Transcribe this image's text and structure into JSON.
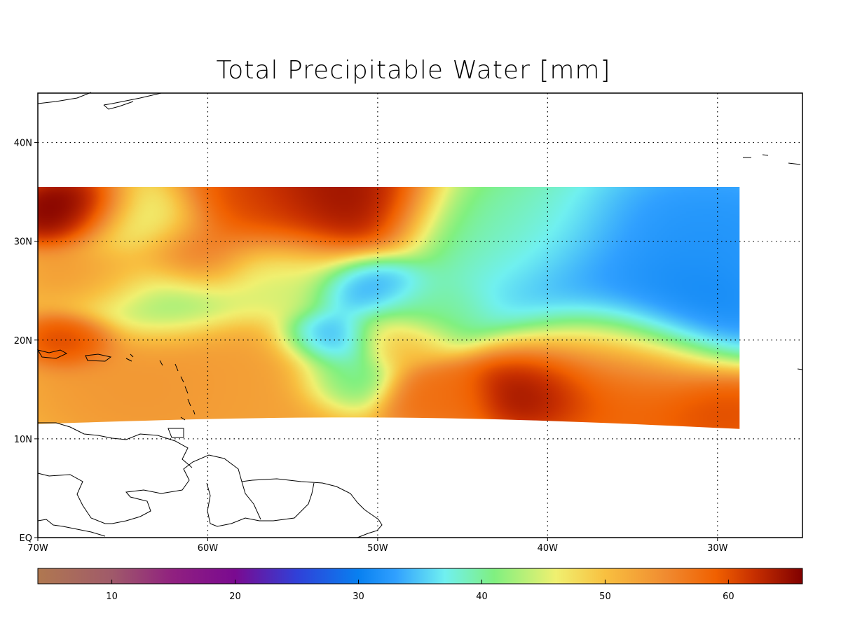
{
  "title": "Total Precipitable Water [mm]",
  "map": {
    "lon_range": [
      -70,
      -25
    ],
    "lat_range": [
      0,
      45
    ],
    "lon_ticks": [
      {
        "value": -70,
        "label": "70W"
      },
      {
        "value": -60,
        "label": "60W"
      },
      {
        "value": -50,
        "label": "50W"
      },
      {
        "value": -40,
        "label": "40W"
      },
      {
        "value": -30,
        "label": "30W"
      }
    ],
    "lat_ticks": [
      {
        "value": 0,
        "label": "EQ"
      },
      {
        "value": 10,
        "label": "10N"
      },
      {
        "value": 20,
        "label": "20N"
      },
      {
        "value": 30,
        "label": "30N"
      },
      {
        "value": 40,
        "label": "40N"
      }
    ],
    "gridlines": "dotted",
    "data_extent": {
      "lon": [
        -70,
        -28.7
      ],
      "lat_north": 35.5,
      "lat_south_west": 11.5,
      "lat_south_east": 11
    }
  },
  "colorbar": {
    "range": [
      4,
      66
    ],
    "ticks": [
      {
        "value": 10,
        "label": "10"
      },
      {
        "value": 20,
        "label": "20"
      },
      {
        "value": 30,
        "label": "30"
      },
      {
        "value": 40,
        "label": "40"
      },
      {
        "value": 50,
        "label": "50"
      },
      {
        "value": 60,
        "label": "60"
      }
    ],
    "stops": [
      {
        "value": 4,
        "color": "#b07850"
      },
      {
        "value": 10,
        "color": "#a05a6a"
      },
      {
        "value": 15,
        "color": "#902080"
      },
      {
        "value": 20,
        "color": "#7a0a90"
      },
      {
        "value": 25,
        "color": "#3040d8"
      },
      {
        "value": 30,
        "color": "#0880f0"
      },
      {
        "value": 33,
        "color": "#30a0ff"
      },
      {
        "value": 37,
        "color": "#70f0f0"
      },
      {
        "value": 41,
        "color": "#80f080"
      },
      {
        "value": 46,
        "color": "#f0f070"
      },
      {
        "value": 50,
        "color": "#f8c040"
      },
      {
        "value": 55,
        "color": "#f08a30"
      },
      {
        "value": 59,
        "color": "#f06000"
      },
      {
        "value": 62,
        "color": "#c83000"
      },
      {
        "value": 66,
        "color": "#800000"
      }
    ]
  },
  "field_blobs": [
    {
      "lon": -68,
      "lat": 33,
      "value": 68,
      "sigma": 1.8
    },
    {
      "lon": -53,
      "lat": 33.8,
      "value": 66,
      "sigma": 3.2
    },
    {
      "lon": -57,
      "lat": 33,
      "value": 60,
      "sigma": 2.5
    },
    {
      "lon": -61,
      "lat": 28.5,
      "value": 60,
      "sigma": 2.0
    },
    {
      "lon": -66,
      "lat": 26.5,
      "value": 55,
      "sigma": 2.0
    },
    {
      "lon": -64,
      "lat": 31.5,
      "value": 44,
      "sigma": 2.2
    },
    {
      "lon": -63,
      "lat": 24.5,
      "value": 40,
      "sigma": 2.5
    },
    {
      "lon": -56,
      "lat": 27,
      "value": 44,
      "sigma": 2.5
    },
    {
      "lon": -68,
      "lat": 20,
      "value": 62,
      "sigma": 1.4
    },
    {
      "lon": -63,
      "lat": 16,
      "value": 54,
      "sigma": 3.5
    },
    {
      "lon": -57,
      "lat": 15.5,
      "value": 53,
      "sigma": 3.0
    },
    {
      "lon": -52.5,
      "lat": 20,
      "value": 31,
      "sigma": 1.7
    },
    {
      "lon": -52,
      "lat": 16,
      "value": 38,
      "sigma": 1.6
    },
    {
      "lon": -50.5,
      "lat": 25.5,
      "value": 31,
      "sigma": 1.8
    },
    {
      "lon": -47.5,
      "lat": 23,
      "value": 40,
      "sigma": 2.0
    },
    {
      "lon": -46.5,
      "lat": 14.5,
      "value": 58,
      "sigma": 1.8
    },
    {
      "lon": -49,
      "lat": 20,
      "value": 52,
      "sigma": 1.6
    },
    {
      "lon": -42,
      "lat": 31,
      "value": 40,
      "sigma": 3.5
    },
    {
      "lon": -36,
      "lat": 27,
      "value": 31,
      "sigma": 5.0
    },
    {
      "lon": -30,
      "lat": 31,
      "value": 31,
      "sigma": 4.0
    },
    {
      "lon": -32,
      "lat": 23,
      "value": 29,
      "sigma": 3.0
    },
    {
      "lon": -40.5,
      "lat": 15.5,
      "value": 67,
      "sigma": 2.3
    },
    {
      "lon": -35,
      "lat": 15,
      "value": 60,
      "sigma": 3.0
    },
    {
      "lon": -30,
      "lat": 13,
      "value": 61,
      "sigma": 2.0
    },
    {
      "lon": -36,
      "lat": 18.5,
      "value": 55,
      "sigma": 3.0
    }
  ],
  "field_background": 50
}
